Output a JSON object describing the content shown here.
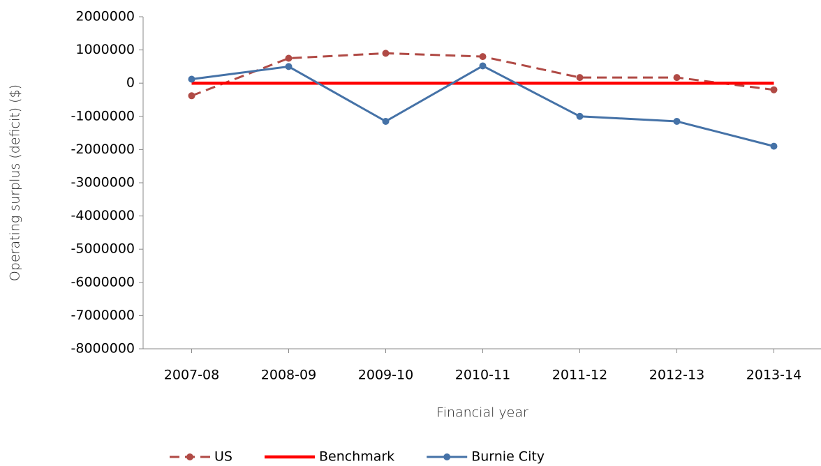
{
  "chart_data": {
    "type": "line",
    "categories": [
      "2007-08",
      "2008-09",
      "2009-10",
      "2010-11",
      "2011-12",
      "2012-13",
      "2013-14"
    ],
    "series": [
      {
        "name": "US",
        "color": "#b04a45",
        "dashed": true,
        "marker": true,
        "values": [
          -380000,
          750000,
          900000,
          800000,
          170000,
          170000,
          -200000
        ]
      },
      {
        "name": "Benchmark",
        "color": "#ff0000",
        "dashed": false,
        "marker": false,
        "values": [
          0,
          0,
          0,
          0,
          0,
          0,
          0
        ]
      },
      {
        "name": "Burnie City",
        "color": "#4572a7",
        "dashed": false,
        "marker": true,
        "values": [
          120000,
          500000,
          -1150000,
          520000,
          -1000000,
          -1150000,
          -1900000
        ]
      }
    ],
    "ylim": [
      -8000000,
      2000000
    ],
    "yticks": [
      -8000000,
      -7000000,
      -6000000,
      -5000000,
      -4000000,
      -3000000,
      -2000000,
      -1000000,
      0,
      1000000,
      2000000
    ],
    "ylabel": "Operating surplus (deficit) ($)",
    "xlabel": "Financial year",
    "grid": false,
    "legend": "bottom"
  }
}
